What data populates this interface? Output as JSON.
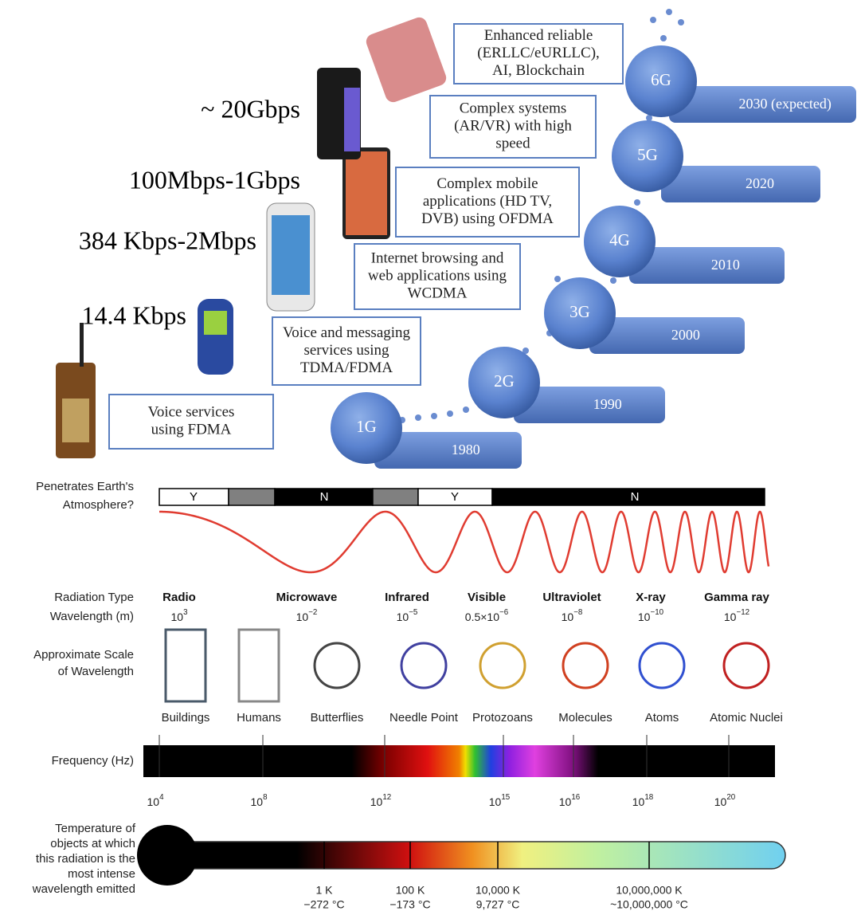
{
  "speeds": [
    "~ 20Gbps",
    "100Mbps-1Gbps",
    "384 Kbps-2Mbps",
    "14.4 Kbps"
  ],
  "services": [
    [
      "Enhanced reliable",
      "(ERLLC/eURLLC),",
      "AI, Blockchain"
    ],
    [
      "Complex systems",
      "(AR/VR) with high",
      "speed"
    ],
    [
      "Complex mobile",
      "applications (HD TV,",
      "DVB) using OFDMA"
    ],
    [
      "Internet browsing and",
      "web applications using",
      "WCDMA"
    ],
    [
      "Voice and messaging",
      "services using",
      "TDMA/FDMA"
    ],
    [
      "Voice services",
      "using FDMA"
    ]
  ],
  "generations": [
    {
      "name": "1G",
      "year": "1980"
    },
    {
      "name": "2G",
      "year": "1990"
    },
    {
      "name": "3G",
      "year": "2000"
    },
    {
      "name": "4G",
      "year": "2010"
    },
    {
      "name": "5G",
      "year": "2020"
    },
    {
      "name": "6G",
      "year": "2030 (expected)"
    }
  ],
  "spectrum": {
    "atmosphere_label": [
      "Penetrates Earth's",
      "Atmosphere?"
    ],
    "atmosphere": [
      "Y",
      "N",
      "Y",
      "N"
    ],
    "radiation_type_label": "Radiation Type",
    "wavelength_label": "Wavelength (m)",
    "radiation": [
      {
        "name": "Radio",
        "wavelength": {
          "base": "10",
          "exp": "3"
        }
      },
      {
        "name": "Microwave",
        "wavelength": {
          "base": "10",
          "exp": "−2"
        }
      },
      {
        "name": "Infrared",
        "wavelength": {
          "base": "10",
          "exp": "−5"
        }
      },
      {
        "name": "Visible",
        "wavelength": {
          "base": "0.5×10",
          "exp": "−6"
        }
      },
      {
        "name": "Ultraviolet",
        "wavelength": {
          "base": "10",
          "exp": "−8"
        }
      },
      {
        "name": "X-ray",
        "wavelength": {
          "base": "10",
          "exp": "−10"
        }
      },
      {
        "name": "Gamma ray",
        "wavelength": {
          "base": "10",
          "exp": "−12"
        }
      }
    ],
    "scale_label": [
      "Approximate Scale",
      "of Wavelength"
    ],
    "scales": [
      "Buildings",
      "Humans",
      "Butterflies",
      "Needle Point",
      "Protozoans",
      "Molecules",
      "Atoms",
      "Atomic Nuclei"
    ],
    "frequency_label": "Frequency (Hz)",
    "frequency_ticks": [
      {
        "base": "10",
        "exp": "4"
      },
      {
        "base": "10",
        "exp": "8"
      },
      {
        "base": "10",
        "exp": "12"
      },
      {
        "base": "10",
        "exp": "15"
      },
      {
        "base": "10",
        "exp": "16"
      },
      {
        "base": "10",
        "exp": "18"
      },
      {
        "base": "10",
        "exp": "20"
      }
    ],
    "temperature_label": [
      "Temperature of",
      "objects at which",
      "this radiation is the",
      "most intense",
      "wavelength emitted"
    ],
    "temperatures": [
      {
        "kelvin": "1 K",
        "celsius": "−272 °C"
      },
      {
        "kelvin": "100 K",
        "celsius": "−173 °C"
      },
      {
        "kelvin": "10,000 K",
        "celsius": "9,727 °C"
      },
      {
        "kelvin": "10,000,000 K",
        "celsius": "~10,000,000 °C"
      }
    ]
  }
}
